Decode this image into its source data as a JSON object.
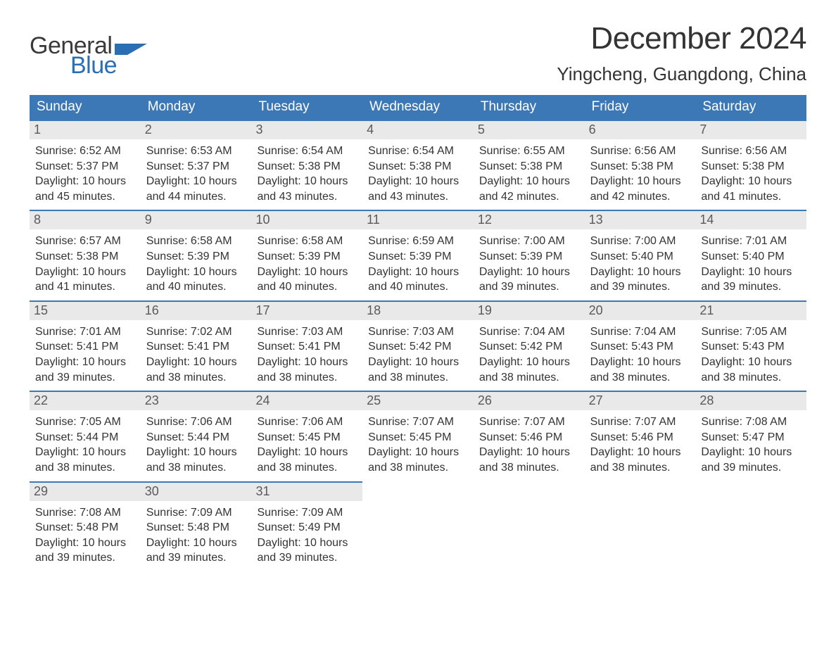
{
  "brand": {
    "word1": "General",
    "word2": "Blue"
  },
  "title": "December 2024",
  "subtitle": "Yingcheng, Guangdong, China",
  "colors": {
    "header_bg": "#3b78b5",
    "header_text": "#ffffff",
    "daynum_bg": "#e9e9e9",
    "daynum_border": "#3b78b5",
    "body_text": "#333333",
    "logo_blue": "#2a6fb3",
    "logo_gray": "#3a3a3a",
    "page_bg": "#ffffff"
  },
  "layout": {
    "columns": 7,
    "font_family": "Arial",
    "title_fontsize": 44,
    "subtitle_fontsize": 26,
    "header_fontsize": 19,
    "daynum_fontsize": 18,
    "body_fontsize": 16
  },
  "day_headers": [
    "Sunday",
    "Monday",
    "Tuesday",
    "Wednesday",
    "Thursday",
    "Friday",
    "Saturday"
  ],
  "labels": {
    "sunrise": "Sunrise:",
    "sunset": "Sunset:",
    "daylight": "Daylight:"
  },
  "weeks": [
    [
      {
        "n": "1",
        "sr": "6:52 AM",
        "ss": "5:37 PM",
        "dl": "10 hours and 45 minutes."
      },
      {
        "n": "2",
        "sr": "6:53 AM",
        "ss": "5:37 PM",
        "dl": "10 hours and 44 minutes."
      },
      {
        "n": "3",
        "sr": "6:54 AM",
        "ss": "5:38 PM",
        "dl": "10 hours and 43 minutes."
      },
      {
        "n": "4",
        "sr": "6:54 AM",
        "ss": "5:38 PM",
        "dl": "10 hours and 43 minutes."
      },
      {
        "n": "5",
        "sr": "6:55 AM",
        "ss": "5:38 PM",
        "dl": "10 hours and 42 minutes."
      },
      {
        "n": "6",
        "sr": "6:56 AM",
        "ss": "5:38 PM",
        "dl": "10 hours and 42 minutes."
      },
      {
        "n": "7",
        "sr": "6:56 AM",
        "ss": "5:38 PM",
        "dl": "10 hours and 41 minutes."
      }
    ],
    [
      {
        "n": "8",
        "sr": "6:57 AM",
        "ss": "5:38 PM",
        "dl": "10 hours and 41 minutes."
      },
      {
        "n": "9",
        "sr": "6:58 AM",
        "ss": "5:39 PM",
        "dl": "10 hours and 40 minutes."
      },
      {
        "n": "10",
        "sr": "6:58 AM",
        "ss": "5:39 PM",
        "dl": "10 hours and 40 minutes."
      },
      {
        "n": "11",
        "sr": "6:59 AM",
        "ss": "5:39 PM",
        "dl": "10 hours and 40 minutes."
      },
      {
        "n": "12",
        "sr": "7:00 AM",
        "ss": "5:39 PM",
        "dl": "10 hours and 39 minutes."
      },
      {
        "n": "13",
        "sr": "7:00 AM",
        "ss": "5:40 PM",
        "dl": "10 hours and 39 minutes."
      },
      {
        "n": "14",
        "sr": "7:01 AM",
        "ss": "5:40 PM",
        "dl": "10 hours and 39 minutes."
      }
    ],
    [
      {
        "n": "15",
        "sr": "7:01 AM",
        "ss": "5:41 PM",
        "dl": "10 hours and 39 minutes."
      },
      {
        "n": "16",
        "sr": "7:02 AM",
        "ss": "5:41 PM",
        "dl": "10 hours and 38 minutes."
      },
      {
        "n": "17",
        "sr": "7:03 AM",
        "ss": "5:41 PM",
        "dl": "10 hours and 38 minutes."
      },
      {
        "n": "18",
        "sr": "7:03 AM",
        "ss": "5:42 PM",
        "dl": "10 hours and 38 minutes."
      },
      {
        "n": "19",
        "sr": "7:04 AM",
        "ss": "5:42 PM",
        "dl": "10 hours and 38 minutes."
      },
      {
        "n": "20",
        "sr": "7:04 AM",
        "ss": "5:43 PM",
        "dl": "10 hours and 38 minutes."
      },
      {
        "n": "21",
        "sr": "7:05 AM",
        "ss": "5:43 PM",
        "dl": "10 hours and 38 minutes."
      }
    ],
    [
      {
        "n": "22",
        "sr": "7:05 AM",
        "ss": "5:44 PM",
        "dl": "10 hours and 38 minutes."
      },
      {
        "n": "23",
        "sr": "7:06 AM",
        "ss": "5:44 PM",
        "dl": "10 hours and 38 minutes."
      },
      {
        "n": "24",
        "sr": "7:06 AM",
        "ss": "5:45 PM",
        "dl": "10 hours and 38 minutes."
      },
      {
        "n": "25",
        "sr": "7:07 AM",
        "ss": "5:45 PM",
        "dl": "10 hours and 38 minutes."
      },
      {
        "n": "26",
        "sr": "7:07 AM",
        "ss": "5:46 PM",
        "dl": "10 hours and 38 minutes."
      },
      {
        "n": "27",
        "sr": "7:07 AM",
        "ss": "5:46 PM",
        "dl": "10 hours and 38 minutes."
      },
      {
        "n": "28",
        "sr": "7:08 AM",
        "ss": "5:47 PM",
        "dl": "10 hours and 39 minutes."
      }
    ],
    [
      {
        "n": "29",
        "sr": "7:08 AM",
        "ss": "5:48 PM",
        "dl": "10 hours and 39 minutes."
      },
      {
        "n": "30",
        "sr": "7:09 AM",
        "ss": "5:48 PM",
        "dl": "10 hours and 39 minutes."
      },
      {
        "n": "31",
        "sr": "7:09 AM",
        "ss": "5:49 PM",
        "dl": "10 hours and 39 minutes."
      },
      null,
      null,
      null,
      null
    ]
  ]
}
